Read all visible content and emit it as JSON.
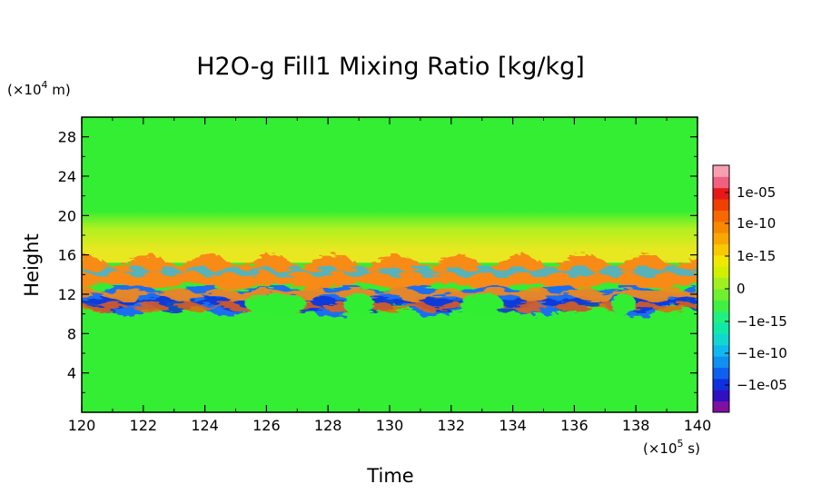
{
  "chart_data": {
    "type": "heatmap",
    "title": "H2O-g Fill1 Mixing Ratio [kg/kg]",
    "xlabel": "Time",
    "ylabel": "Height",
    "x_unit": "(×10",
    "x_unit_exp": "5",
    "x_unit_tail": " s)",
    "y_unit": "(×10",
    "y_unit_exp": "4",
    "y_unit_tail": " m)",
    "xlim": [
      120,
      140
    ],
    "ylim": [
      0,
      30
    ],
    "x_ticks": [
      "120",
      "122",
      "124",
      "126",
      "128",
      "130",
      "132",
      "134",
      "136",
      "138",
      "140"
    ],
    "y_ticks": [
      "4",
      "8",
      "12",
      "16",
      "20",
      "24",
      "28"
    ],
    "colorbar_labels": [
      "1e-05",
      "1e-10",
      "1e-15",
      "0",
      "−1e-15",
      "−1e-10",
      "−1e-05"
    ],
    "colorbar_colors": [
      "#8010a0",
      "#3010c0",
      "#1030e0",
      "#1060f0",
      "#1090f0",
      "#10b8f0",
      "#10d8d0",
      "#10e8a8",
      "#20f080",
      "#40f040",
      "#70f030",
      "#a0f020",
      "#d0f000",
      "#f0e800",
      "#f8c800",
      "#f8a800",
      "#f88800",
      "#f86800",
      "#f04000",
      "#e81818",
      "#f06080",
      "#f8a0b0"
    ],
    "bands": [
      {
        "name": "background",
        "color": "#33ee33"
      },
      {
        "name": "negative",
        "color": "#1a6ef0"
      },
      {
        "name": "strong-negative",
        "color": "#1030d8"
      },
      {
        "name": "light-negative",
        "color": "#20c0f0"
      },
      {
        "name": "positive",
        "color": "#f88a18"
      },
      {
        "name": "strong-positive",
        "color": "#f06010"
      },
      {
        "name": "yellow",
        "color": "#e8e820"
      },
      {
        "name": "yellow-green",
        "color": "#b0f020"
      }
    ]
  }
}
